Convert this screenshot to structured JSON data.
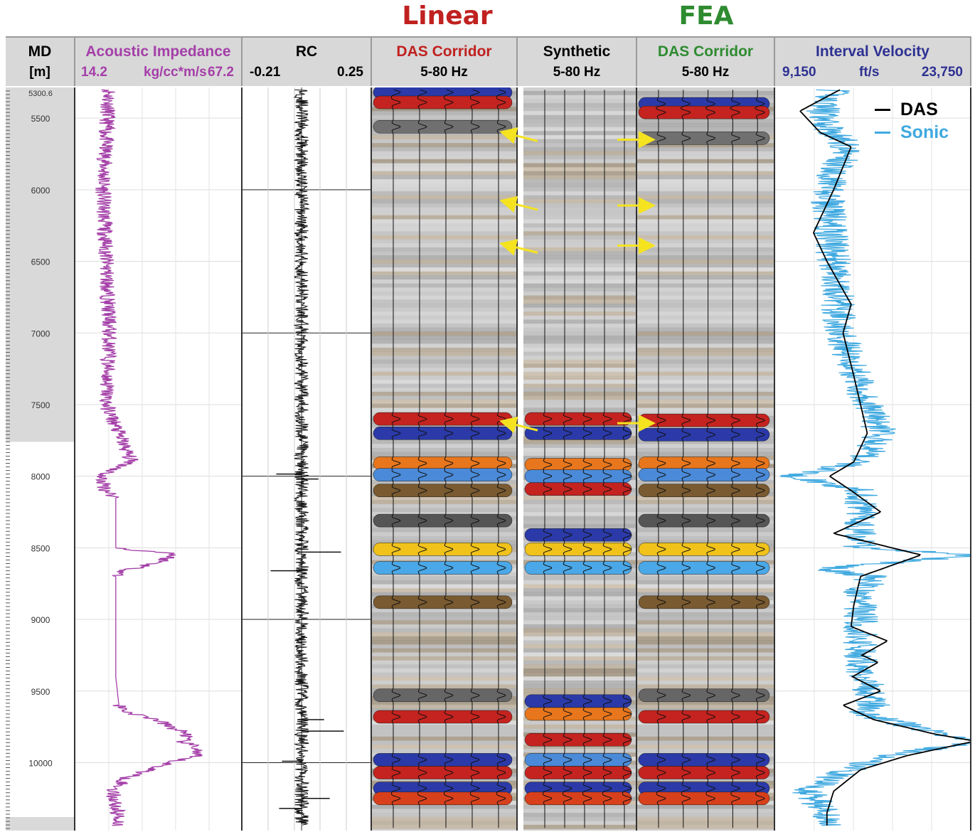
{
  "titles": {
    "linear": "Linear",
    "fea": "FEA",
    "linear_color": "#c0211f",
    "fea_color": "#2e8b30"
  },
  "tracks": {
    "md": {
      "label": "MD",
      "unit": "[m]"
    },
    "ai": {
      "label": "Acoustic Impedance",
      "min": "14.2",
      "unit": "kg/cc*m/s",
      "max": "67.2",
      "color": "#a43fa8"
    },
    "rc": {
      "label": "RC",
      "min": "-0.21",
      "max": "0.25"
    },
    "das_linear": {
      "label": "DAS Corridor",
      "band": "5-80 Hz",
      "color": "#c0211f"
    },
    "synthetic": {
      "label": "Synthetic",
      "band": "5-80 Hz"
    },
    "das_fea": {
      "label": "DAS Corridor",
      "band": "5-80 Hz",
      "color": "#2e8b30"
    },
    "velocity": {
      "label": "Interval Velocity",
      "min": "9,150",
      "unit": "ft/s",
      "max": "23,750",
      "color": "#2e3192"
    }
  },
  "legend": {
    "das": "DAS",
    "sonic": "Sonic",
    "das_color": "#000000",
    "sonic_color": "#3fa9e0"
  },
  "chart_data": {
    "type": "line",
    "depth_axis": {
      "label": "MD [m]",
      "top_label": "5300.6",
      "ticks": [
        "5500",
        "6000",
        "6500",
        "7000",
        "7500",
        "8000",
        "8500",
        "9000",
        "9500",
        "10000"
      ],
      "range": [
        5300.6,
        10470
      ]
    },
    "acoustic_impedance": {
      "xlim": [
        14.2,
        67.2
      ],
      "depth": [
        5300,
        5600,
        6000,
        6500,
        7000,
        7500,
        7700,
        7900,
        8000,
        8100,
        8150,
        8500,
        8520,
        8540,
        8600,
        8660,
        8700,
        9000,
        9400,
        9600,
        9650,
        9700,
        9750,
        9800,
        9850,
        9900,
        9950,
        10000,
        10050,
        10100,
        10200,
        10300,
        10400
      ],
      "values": [
        25,
        24,
        23,
        24,
        25,
        24,
        28,
        32,
        22,
        24,
        27,
        27,
        35,
        46,
        41,
        30,
        27,
        27,
        27,
        28,
        31,
        40,
        44,
        50,
        48,
        53,
        52,
        44,
        38,
        31,
        26,
        27,
        28
      ]
    },
    "reflection_coefficient": {
      "xlim": [
        -0.21,
        0.25
      ],
      "spikes": [
        {
          "depth": 7985,
          "value": -0.09
        },
        {
          "depth": 8020,
          "value": 0.06
        },
        {
          "depth": 8530,
          "value": 0.14
        },
        {
          "depth": 8660,
          "value": -0.11
        },
        {
          "depth": 9700,
          "value": 0.08
        },
        {
          "depth": 9780,
          "value": 0.15
        },
        {
          "depth": 9990,
          "value": -0.07
        },
        {
          "depth": 10250,
          "value": 0.1
        },
        {
          "depth": 10320,
          "value": -0.08
        }
      ]
    },
    "corridor_bands": {
      "das_linear": [
        {
          "depth": 5320,
          "color": "#2b3aa8"
        },
        {
          "depth": 5390,
          "color": "#c4231f"
        },
        {
          "depth": 5560,
          "color": "#707070"
        },
        {
          "depth": 7600,
          "color": "#c4231f"
        },
        {
          "depth": 7700,
          "color": "#2b3aa8"
        },
        {
          "depth": 7910,
          "color": "#e8761c"
        },
        {
          "depth": 7990,
          "color": "#4a8ad8"
        },
        {
          "depth": 8100,
          "color": "#7a5a30"
        },
        {
          "depth": 8310,
          "color": "#555555"
        },
        {
          "depth": 8510,
          "color": "#f0c21a"
        },
        {
          "depth": 8640,
          "color": "#4aa8e8"
        },
        {
          "depth": 8880,
          "color": "#7a5a30"
        },
        {
          "depth": 9530,
          "color": "#666666"
        },
        {
          "depth": 9680,
          "color": "#c4231f"
        },
        {
          "depth": 9980,
          "color": "#2b3aa8"
        },
        {
          "depth": 10070,
          "color": "#c4231f"
        },
        {
          "depth": 10180,
          "color": "#2b3aa8"
        },
        {
          "depth": 10250,
          "color": "#d8401c"
        }
      ],
      "synthetic": [
        {
          "depth": 7600,
          "color": "#c4231f"
        },
        {
          "depth": 7700,
          "color": "#2b3aa8"
        },
        {
          "depth": 7920,
          "color": "#e8761c"
        },
        {
          "depth": 8000,
          "color": "#4a8ad8"
        },
        {
          "depth": 8090,
          "color": "#c4231f"
        },
        {
          "depth": 8410,
          "color": "#2b3aa8"
        },
        {
          "depth": 8510,
          "color": "#f0c21a"
        },
        {
          "depth": 8640,
          "color": "#4aa8e8"
        },
        {
          "depth": 9570,
          "color": "#2b3aa8"
        },
        {
          "depth": 9660,
          "color": "#e8761c"
        },
        {
          "depth": 9840,
          "color": "#c4231f"
        },
        {
          "depth": 9980,
          "color": "#4a8ad8"
        },
        {
          "depth": 10070,
          "color": "#c4231f"
        },
        {
          "depth": 10180,
          "color": "#2b3aa8"
        },
        {
          "depth": 10250,
          "color": "#d8401c"
        }
      ],
      "das_fea": [
        {
          "depth": 5400,
          "color": "#2b3aa8"
        },
        {
          "depth": 5460,
          "color": "#c4231f"
        },
        {
          "depth": 5640,
          "color": "#707070"
        },
        {
          "depth": 7610,
          "color": "#c4231f"
        },
        {
          "depth": 7710,
          "color": "#2b3aa8"
        },
        {
          "depth": 7910,
          "color": "#e8761c"
        },
        {
          "depth": 7990,
          "color": "#4a8ad8"
        },
        {
          "depth": 8100,
          "color": "#7a5a30"
        },
        {
          "depth": 8310,
          "color": "#555555"
        },
        {
          "depth": 8510,
          "color": "#f0c21a"
        },
        {
          "depth": 8640,
          "color": "#4aa8e8"
        },
        {
          "depth": 8880,
          "color": "#7a5a30"
        },
        {
          "depth": 9530,
          "color": "#666666"
        },
        {
          "depth": 9680,
          "color": "#c4231f"
        },
        {
          "depth": 9980,
          "color": "#2b3aa8"
        },
        {
          "depth": 10070,
          "color": "#c4231f"
        },
        {
          "depth": 10180,
          "color": "#2b3aa8"
        },
        {
          "depth": 10250,
          "color": "#d8401c"
        }
      ]
    },
    "arrows": {
      "color": "#f5e320",
      "linear_depths": [
        5600,
        6080,
        6380,
        7620
      ],
      "fea_depths": [
        5650,
        6110,
        6390,
        7630
      ]
    },
    "interval_velocity": {
      "xlim": [
        9150,
        23750
      ],
      "das": {
        "name": "DAS",
        "depth": [
          5300,
          5450,
          5600,
          5700,
          6000,
          6300,
          6500,
          6800,
          7000,
          7300,
          7500,
          7700,
          7900,
          8000,
          8100,
          8250,
          8400,
          8550,
          8700,
          8900,
          9050,
          9150,
          9250,
          9300,
          9400,
          9500,
          9600,
          9700,
          9800,
          9850,
          9950,
          10050,
          10200,
          10350,
          10450
        ],
        "values": [
          14000,
          11000,
          12500,
          14800,
          13500,
          12000,
          13000,
          14800,
          14200,
          15000,
          15500,
          16000,
          15000,
          13200,
          14800,
          17000,
          13500,
          20000,
          15500,
          15000,
          14800,
          17500,
          15600,
          16800,
          14900,
          17000,
          14200,
          16500,
          21000,
          24000,
          19000,
          15500,
          13500,
          13000,
          13000
        ]
      },
      "sonic": {
        "name": "Sonic",
        "depth": [
          5300,
          5500,
          5700,
          6000,
          6500,
          7000,
          7500,
          7700,
          7900,
          8000,
          8100,
          8500,
          8550,
          8650,
          8700,
          8800,
          9300,
          9600,
          9650,
          9700,
          9800,
          9850,
          9950,
          10000,
          10100,
          10200,
          10300,
          10400
        ],
        "values": [
          13500,
          12500,
          14500,
          13000,
          13500,
          14000,
          16000,
          17000,
          15500,
          10500,
          15500,
          15500,
          24000,
          12500,
          16500,
          15500,
          15500,
          16500,
          15000,
          17500,
          21500,
          24500,
          17500,
          16000,
          13500,
          11500,
          12500,
          13000
        ]
      }
    }
  }
}
